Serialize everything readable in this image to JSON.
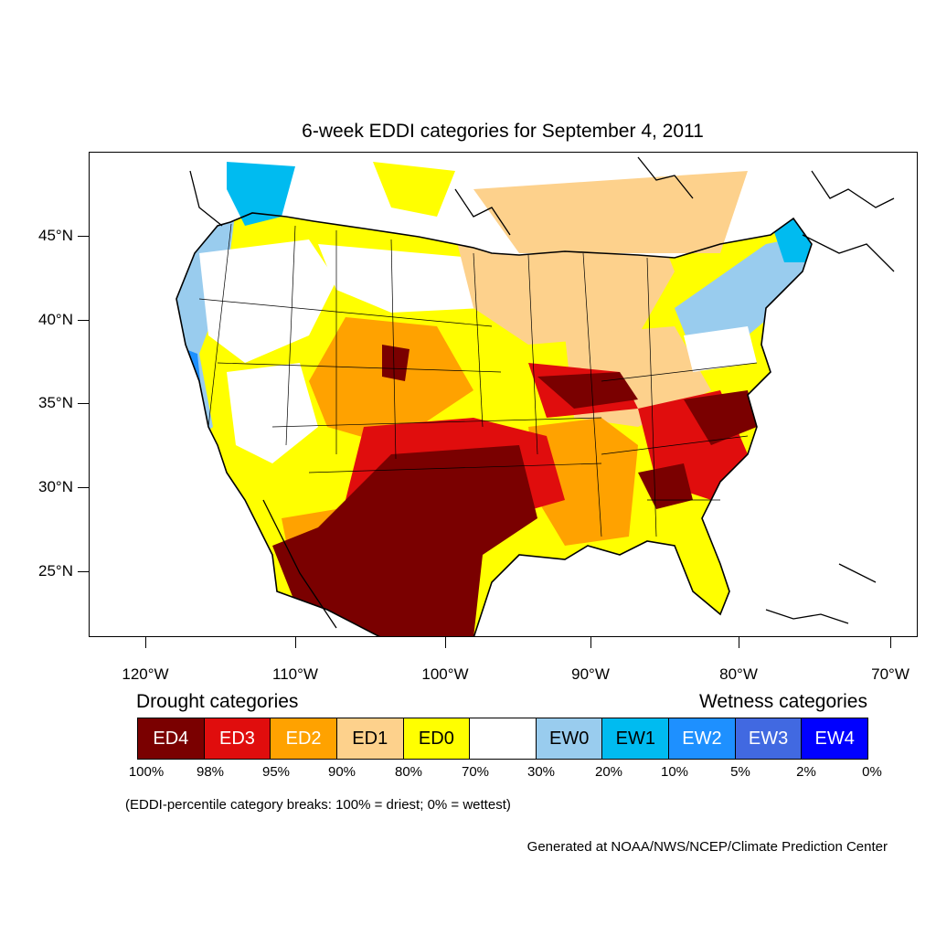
{
  "title": "6-week EDDI categories for September 4, 2011",
  "map": {
    "region": "contiguous United States",
    "lat_range": [
      21,
      50
    ],
    "lon_range": [
      -124,
      -68
    ],
    "lat_ticks": [
      "45°N",
      "40°N",
      "35°N",
      "30°N",
      "25°N"
    ],
    "lon_ticks": [
      "120°W",
      "110°W",
      "100°W",
      "90°W",
      "80°W",
      "70°W"
    ]
  },
  "legend": {
    "drought_heading": "Drought categories",
    "wetness_heading": "Wetness categories",
    "categories": [
      {
        "label": "ED4",
        "color": "#7a0000",
        "text_color": "#ffffff"
      },
      {
        "label": "ED3",
        "color": "#e00d0d",
        "text_color": "#ffffff"
      },
      {
        "label": "ED2",
        "color": "#ffa200",
        "text_color": "#ffffff"
      },
      {
        "label": "ED1",
        "color": "#fdd18c",
        "text_color": "#000000"
      },
      {
        "label": "ED0",
        "color": "#ffff00",
        "text_color": "#000000"
      },
      {
        "label": "",
        "color": "#ffffff",
        "text_color": "#000000"
      },
      {
        "label": "EW0",
        "color": "#99ccee",
        "text_color": "#000000"
      },
      {
        "label": "EW1",
        "color": "#00bbf0",
        "text_color": "#000000"
      },
      {
        "label": "EW2",
        "color": "#1e90ff",
        "text_color": "#ffffff"
      },
      {
        "label": "EW3",
        "color": "#4169e1",
        "text_color": "#ffffff"
      },
      {
        "label": "EW4",
        "color": "#0000ff",
        "text_color": "#ffffff"
      }
    ],
    "percentiles": [
      "100%",
      "98%",
      "95%",
      "90%",
      "80%",
      "70%",
      "30%",
      "20%",
      "10%",
      "5%",
      "2%",
      "0%"
    ]
  },
  "note": "(EDDI-percentile category breaks: 100% = driest; 0% = wettest)",
  "credit": "Generated at NOAA/NWS/NCEP/Climate Prediction Center"
}
